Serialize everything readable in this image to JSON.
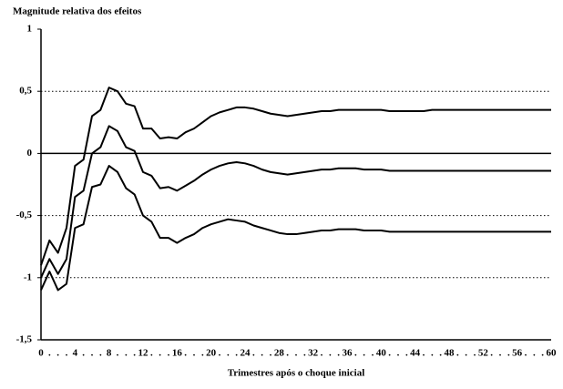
{
  "chart_data": {
    "type": "line",
    "title": "Magnitude relativa dos efeitos",
    "x_label": "Trimestres após o choque inicial",
    "categories": [
      "0",
      ".",
      ".",
      ".",
      "4",
      ".",
      ".",
      ".",
      "8",
      ".",
      ".",
      ".",
      "12",
      ".",
      ".",
      ".",
      "16",
      ".",
      ".",
      ".",
      "20",
      ".",
      ".",
      ".",
      "24",
      ".",
      ".",
      ".",
      "28",
      ".",
      ".",
      ".",
      "32",
      ".",
      ".",
      ".",
      "36",
      ".",
      ".",
      ".",
      "40",
      ".",
      ".",
      ".",
      "44",
      ".",
      ".",
      ".",
      "48",
      ".",
      ".",
      ".",
      "52",
      ".",
      ".",
      ".",
      "56",
      ".",
      ".",
      ".",
      "60"
    ],
    "series": [
      {
        "color": "#000000",
        "values": [
          -0.9,
          -0.7,
          -0.8,
          -0.6,
          -0.1,
          -0.05,
          0.3,
          0.35,
          0.53,
          0.5,
          0.4,
          0.38,
          0.2,
          0.2,
          0.12,
          0.13,
          0.12,
          0.17,
          0.2,
          0.25,
          0.3,
          0.33,
          0.35,
          0.37,
          0.37,
          0.36,
          0.34,
          0.32,
          0.31,
          0.3,
          0.31,
          0.32,
          0.33,
          0.34,
          0.34,
          0.35,
          0.35,
          0.35,
          0.35,
          0.35,
          0.35,
          0.34,
          0.34,
          0.34,
          0.34,
          0.34,
          0.35,
          0.35,
          0.35,
          0.35,
          0.35,
          0.35,
          0.35,
          0.35,
          0.35,
          0.35,
          0.35,
          0.35,
          0.35,
          0.35,
          0.35
        ]
      },
      {
        "color": "#000000",
        "values": [
          -1.0,
          -0.85,
          -0.97,
          -0.85,
          -0.35,
          -0.3,
          0.0,
          0.05,
          0.22,
          0.18,
          0.05,
          0.02,
          -0.15,
          -0.18,
          -0.28,
          -0.27,
          -0.3,
          -0.26,
          -0.22,
          -0.17,
          -0.13,
          -0.1,
          -0.08,
          -0.07,
          -0.08,
          -0.1,
          -0.13,
          -0.15,
          -0.16,
          -0.17,
          -0.16,
          -0.15,
          -0.14,
          -0.13,
          -0.13,
          -0.12,
          -0.12,
          -0.12,
          -0.13,
          -0.13,
          -0.13,
          -0.14,
          -0.14,
          -0.14,
          -0.14,
          -0.14,
          -0.14,
          -0.14,
          -0.14,
          -0.14,
          -0.14,
          -0.14,
          -0.14,
          -0.14,
          -0.14,
          -0.14,
          -0.14,
          -0.14,
          -0.14,
          -0.14,
          -0.14
        ]
      },
      {
        "color": "#000000",
        "values": [
          -1.1,
          -0.95,
          -1.1,
          -1.05,
          -0.6,
          -0.57,
          -0.27,
          -0.25,
          -0.1,
          -0.15,
          -0.28,
          -0.33,
          -0.5,
          -0.55,
          -0.68,
          -0.68,
          -0.72,
          -0.68,
          -0.65,
          -0.6,
          -0.57,
          -0.55,
          -0.53,
          -0.54,
          -0.55,
          -0.58,
          -0.6,
          -0.62,
          -0.64,
          -0.65,
          -0.65,
          -0.64,
          -0.63,
          -0.62,
          -0.62,
          -0.61,
          -0.61,
          -0.61,
          -0.62,
          -0.62,
          -0.62,
          -0.63,
          -0.63,
          -0.63,
          -0.63,
          -0.63,
          -0.63,
          -0.63,
          -0.63,
          -0.63,
          -0.63,
          -0.63,
          -0.63,
          -0.63,
          -0.63,
          -0.63,
          -0.63,
          -0.63,
          -0.63,
          -0.63,
          -0.63
        ]
      }
    ],
    "ylim": [
      -1.5,
      1
    ],
    "yticks": [
      {
        "value": -1.5,
        "label": "-1,5"
      },
      -1,
      {
        "value": -0.5,
        "label": "-0,5"
      },
      0,
      {
        "value": 0.5,
        "label": "0,5"
      },
      1
    ],
    "grid": true
  }
}
